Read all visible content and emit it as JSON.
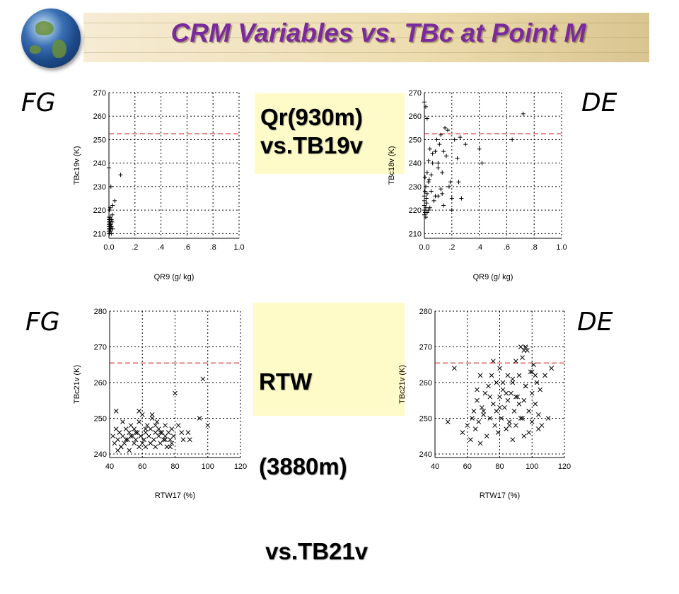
{
  "slide": {
    "title": "CRM Variables vs. TBc at Point M",
    "labels": {
      "fg_top": "FG",
      "de_top": "DE",
      "fg_bottom": "FG",
      "de_bottom": "DE"
    },
    "callout_top": [
      "Qr(930m)",
      "vs.TB19v"
    ],
    "callout_bottom": [
      "RTW",
      "(3880m)",
      " vs.TB21v"
    ],
    "colors": {
      "title": "#7a2a9c",
      "threshold": "#cc0000",
      "callout_bg": "#fffbc8"
    }
  },
  "chart_data": [
    {
      "type": "scatter",
      "xlabel": "QR9 (g/ kg)",
      "ylabel": "TBc19v (K)",
      "xlim": [
        0,
        1.0
      ],
      "ylim": [
        208,
        270
      ],
      "xticks": [
        0,
        0.2,
        0.4,
        0.6,
        0.8,
        1.0
      ],
      "xtick_labels": [
        "0.0",
        ".2",
        ".4",
        ".6",
        ".8",
        "1.0"
      ],
      "yticks": [
        210,
        220,
        230,
        240,
        250,
        260,
        270
      ],
      "ytick_labels": [
        "210",
        "220",
        "230",
        "240",
        "250",
        "260",
        "270"
      ],
      "threshold": 252.5,
      "marker": "plus",
      "series": [
        {
          "x": [
            0.0,
            0.0,
            0.0,
            0.0,
            0.0,
            0.0,
            0.0,
            0.0,
            0.005,
            0.005,
            0.005,
            0.005,
            0.01,
            0.01,
            0.01,
            0.01,
            0.015,
            0.015,
            0.02,
            0.02,
            0.02,
            0.025,
            0.025,
            0.03,
            0.03,
            0.005,
            0.01,
            0.0,
            0.045,
            0.09,
            0.015
          ],
          "y": [
            210,
            211,
            212,
            213,
            214,
            215,
            216,
            217,
            210,
            212,
            214,
            216,
            211,
            213,
            215,
            217,
            212,
            214,
            210,
            213,
            216,
            215,
            218,
            212,
            222,
            220,
            221,
            238,
            224,
            235,
            230
          ]
        }
      ]
    },
    {
      "type": "scatter",
      "xlabel": "QR9 (g/ kg)",
      "ylabel": "TBc18v (K)",
      "xlim": [
        0,
        1.0
      ],
      "ylim": [
        208,
        270
      ],
      "xticks": [
        0,
        0.2,
        0.4,
        0.6,
        0.8,
        1.0
      ],
      "xtick_labels": [
        "0.0",
        ".2",
        ".4",
        ".6",
        ".8",
        "1.0"
      ],
      "yticks": [
        210,
        220,
        230,
        240,
        250,
        260,
        270
      ],
      "ytick_labels": [
        "210",
        "220",
        "230",
        "240",
        "250",
        "260",
        "270"
      ],
      "threshold": 252.5,
      "marker": "plus",
      "series": [
        {
          "x": [
            0.0,
            0.0,
            0.0,
            0.0,
            0.0,
            0.005,
            0.005,
            0.01,
            0.01,
            0.01,
            0.015,
            0.015,
            0.02,
            0.02,
            0.03,
            0.03,
            0.035,
            0.04,
            0.05,
            0.05,
            0.06,
            0.07,
            0.08,
            0.09,
            0.1,
            0.11,
            0.12,
            0.13,
            0.14,
            0.15,
            0.16,
            0.18,
            0.19,
            0.2,
            0.22,
            0.25,
            0.27,
            0.3,
            0.02,
            0.04,
            0.06,
            0.08,
            0.1,
            0.12,
            0.14,
            0.2,
            0.24,
            0.26,
            0.4,
            0.42,
            0.64,
            0.72,
            0.01,
            0.02,
            0.03,
            0.0,
            0.005,
            0.1,
            0.13,
            0.17
          ],
          "y": [
            218,
            220,
            222,
            224,
            226,
            219,
            228,
            217,
            221,
            230,
            223,
            225,
            219,
            227,
            232,
            220,
            233,
            221,
            235,
            228,
            240,
            224,
            245,
            250,
            238,
            248,
            252,
            236,
            245,
            255,
            243,
            230,
            232,
            225,
            250,
            232,
            225,
            248,
            236,
            246,
            244,
            226,
            240,
            229,
            222,
            220,
            242,
            251,
            246,
            240,
            250,
            261,
            264,
            259,
            241,
            266,
            234,
            226,
            227,
            254
          ]
        }
      ]
    },
    {
      "type": "scatter",
      "xlabel": "RTW17 (%)",
      "ylabel": "TBc21v (K)",
      "xlim": [
        40,
        120
      ],
      "ylim": [
        239,
        280
      ],
      "xticks": [
        40,
        60,
        80,
        100,
        120
      ],
      "xtick_labels": [
        "40",
        "60",
        "80",
        "100",
        "120"
      ],
      "yticks": [
        240,
        250,
        260,
        270,
        280
      ],
      "ytick_labels": [
        "240",
        "250",
        "260",
        "270",
        "280"
      ],
      "threshold": 265.5,
      "marker": "cross",
      "series": [
        {
          "x": [
            42,
            43,
            44,
            45,
            46,
            47,
            48,
            48,
            49,
            50,
            51,
            52,
            52,
            53,
            54,
            55,
            55,
            56,
            57,
            58,
            58,
            59,
            60,
            60,
            61,
            62,
            62,
            63,
            64,
            65,
            65,
            66,
            67,
            68,
            68,
            69,
            70,
            70,
            71,
            72,
            73,
            74,
            74,
            75,
            76,
            77,
            78,
            78,
            79,
            80,
            82,
            84,
            85,
            88,
            89,
            95,
            97,
            100,
            45,
            47,
            50,
            53,
            56,
            59,
            62,
            65,
            68,
            71,
            74,
            77,
            44,
            58,
            66
          ],
          "y": [
            245,
            243,
            247,
            244,
            246,
            242,
            249,
            245,
            243,
            247,
            244,
            246,
            241,
            248,
            245,
            243,
            247,
            244,
            246,
            242,
            249,
            245,
            243,
            251,
            244,
            246,
            242,
            248,
            245,
            247,
            243,
            250,
            244,
            246,
            242,
            249,
            245,
            247,
            243,
            246,
            244,
            248,
            245,
            242,
            246,
            244,
            247,
            243,
            245,
            257,
            248,
            246,
            244,
            246,
            244,
            250,
            261,
            248,
            241,
            242,
            244,
            245,
            246,
            245,
            247,
            243,
            248,
            246,
            244,
            242,
            252,
            252,
            251
          ]
        }
      ]
    },
    {
      "type": "scatter",
      "xlabel": "RTW17 (%)",
      "ylabel": "TBc21v (K)",
      "xlim": [
        40,
        120
      ],
      "ylim": [
        239,
        280
      ],
      "xticks": [
        40,
        60,
        80,
        100,
        120
      ],
      "xtick_labels": [
        "40",
        "60",
        "80",
        "100",
        "120"
      ],
      "yticks": [
        240,
        250,
        260,
        270,
        280
      ],
      "ytick_labels": [
        "240",
        "250",
        "260",
        "270",
        "280"
      ],
      "threshold": 265.5,
      "marker": "cross",
      "series": [
        {
          "x": [
            48,
            52,
            57,
            60,
            62,
            63,
            64,
            65,
            66,
            67,
            68,
            69,
            70,
            71,
            72,
            73,
            74,
            75,
            76,
            77,
            78,
            78,
            79,
            80,
            80,
            81,
            82,
            83,
            84,
            85,
            85,
            86,
            87,
            88,
            88,
            89,
            90,
            90,
            91,
            92,
            93,
            94,
            95,
            95,
            96,
            97,
            98,
            99,
            100,
            100,
            101,
            102,
            103,
            104,
            105,
            106,
            108,
            110,
            112,
            76,
            80,
            84,
            88,
            92,
            96,
            100,
            104,
            70,
            74,
            82,
            86,
            90,
            94,
            98,
            102,
            66,
            68,
            93,
            95,
            96
          ],
          "y": [
            249,
            264,
            246,
            248,
            244,
            250,
            252,
            247,
            255,
            249,
            243,
            253,
            251,
            257,
            245,
            259,
            250,
            262,
            254,
            248,
            260,
            252,
            246,
            256,
            264,
            250,
            258,
            253,
            247,
            262,
            255,
            249,
            257,
            244,
            260,
            252,
            266,
            248,
            256,
            262,
            250,
            267,
            255,
            245,
            259,
            269,
            252,
            263,
            257,
            249,
            265,
            254,
            260,
            251,
            258,
            248,
            262,
            250,
            264,
            266,
            253,
            257,
            261,
            254,
            259,
            263,
            247,
            252,
            256,
            260,
            248,
            256,
            250,
            246,
            262,
            258,
            262,
            270,
            269,
            270
          ]
        }
      ]
    }
  ]
}
